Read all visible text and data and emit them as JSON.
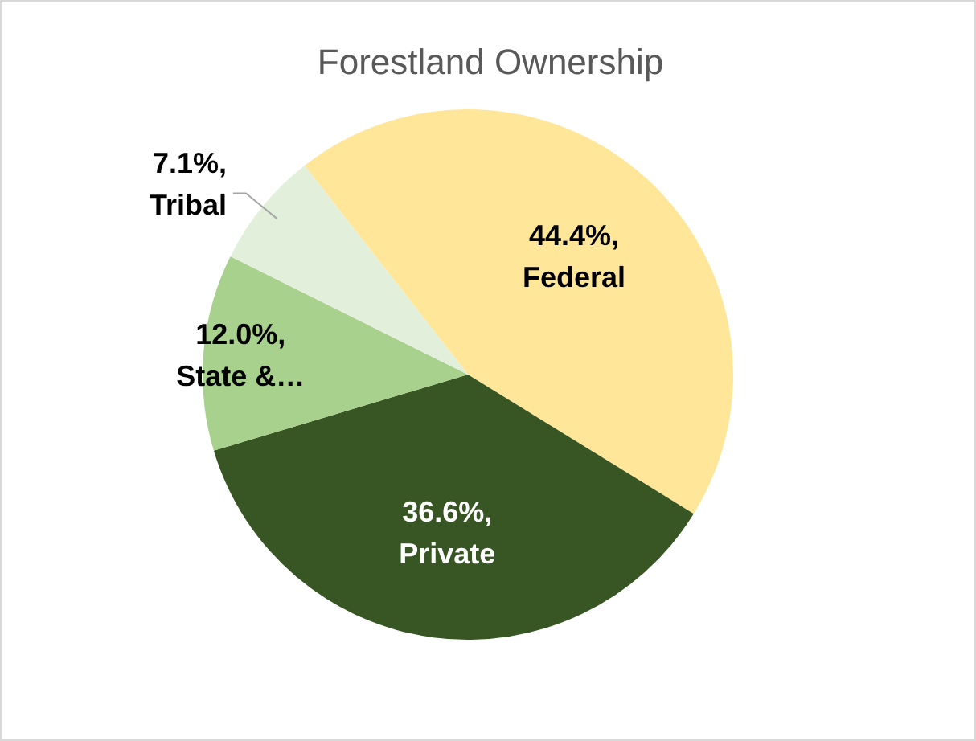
{
  "chart_data": {
    "type": "pie",
    "title": "Forestland Ownership",
    "categories": [
      "Federal",
      "Private",
      "State &…",
      "Tribal"
    ],
    "values": [
      44.4,
      36.6,
      12.0,
      7.1
    ],
    "colors": [
      "#ffe699",
      "#375623",
      "#a9d18e",
      "#e2efda"
    ],
    "value_labels": [
      "44.4%,",
      "36.6%,",
      "12.0%,",
      "7.1%,"
    ]
  }
}
